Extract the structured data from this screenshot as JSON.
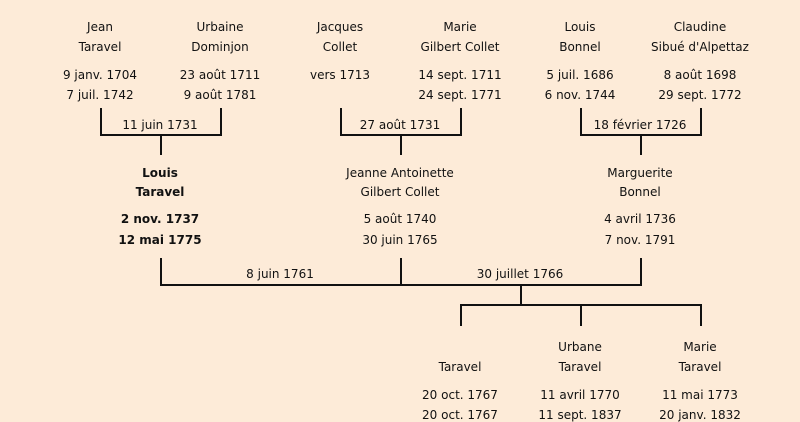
{
  "grandparents": [
    {
      "first": "Jean",
      "last": "Taravel",
      "birth": "9 janv. 1704",
      "death": "7 juil. 1742"
    },
    {
      "first": "Urbaine",
      "last": "Dominjon",
      "birth": "23 août 1711",
      "death": "9 août 1781"
    },
    {
      "first": "Jacques",
      "last": "Collet",
      "birth": "vers 1713",
      "death": ""
    },
    {
      "first": "Marie",
      "last": "Gilbert Collet",
      "birth": "14 sept. 1711",
      "death": "24 sept. 1771"
    },
    {
      "first": "Louis",
      "last": "Bonnel",
      "birth": "5 juil. 1686",
      "death": "6 nov. 1744"
    },
    {
      "first": "Claudine",
      "last": "Sibué d'Alpettaz",
      "birth": "8 août 1698",
      "death": "29 sept. 1772"
    }
  ],
  "grandparent_marriages": [
    "11 juin 1731",
    "27 août 1731",
    "18 février 1726"
  ],
  "parents": [
    {
      "first": "Louis",
      "last": "Taravel",
      "birth": "2 nov. 1737",
      "death": "12 mai 1775",
      "highlighted": true
    },
    {
      "first": "Jeanne Antoinette",
      "last": "Gilbert Collet",
      "birth": "5 août 1740",
      "death": "30 juin 1765"
    },
    {
      "first": "Marguerite",
      "last": "Bonnel",
      "birth": "4 avril 1736",
      "death": "7 nov. 1791"
    }
  ],
  "parent_marriages": [
    "8 juin 1761",
    "30 juillet 1766"
  ],
  "children": [
    {
      "first": "",
      "last": "Taravel",
      "birth": "20 oct. 1767",
      "death": "20 oct. 1767"
    },
    {
      "first": "Urbane",
      "last": "Taravel",
      "birth": "11 avril 1770",
      "death": "11 sept. 1837"
    },
    {
      "first": "Marie",
      "last": "Taravel",
      "birth": "11 mai 1773",
      "death": "20 janv. 1832"
    }
  ],
  "colors": {
    "background": "#fdebd8",
    "line": "#111111"
  }
}
